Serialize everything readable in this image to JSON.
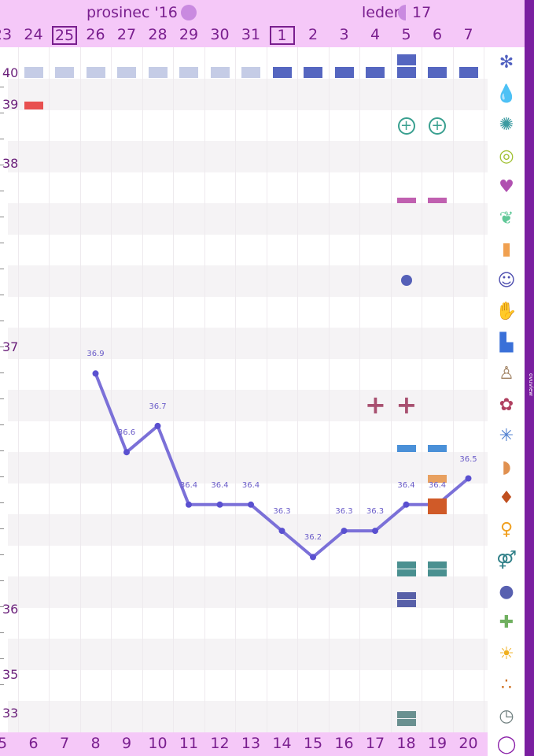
{
  "header": {
    "months": [
      {
        "label": "prosinec '16",
        "moon": "full-moon-icon"
      },
      {
        "label": "leden '17",
        "moon": "half-moon-icon"
      }
    ],
    "days": [
      "23",
      "24",
      "25",
      "26",
      "27",
      "28",
      "29",
      "30",
      "31",
      "1",
      "2",
      "3",
      "4",
      "5",
      "6",
      "7"
    ],
    "boxed_days": [
      "25",
      "1"
    ]
  },
  "footer": {
    "cycle_days": [
      "5",
      "6",
      "7",
      "8",
      "9",
      "10",
      "11",
      "12",
      "13",
      "14",
      "15",
      "16",
      "17",
      "18",
      "19",
      "20"
    ]
  },
  "y_axis": {
    "ticks": [
      "40",
      "39",
      "38",
      "37",
      "36",
      "35",
      "33"
    ]
  },
  "brand": "ovuview",
  "row_icons": [
    "flower-icon",
    "blood-drop-icon",
    "splash-icon",
    "rings-icon",
    "heart-icon",
    "leaf-icon",
    "pill-bottle-icon",
    "smiley-icon",
    "pain-icon",
    "document-icon",
    "pregnancy-test-icon",
    "flower-check-icon",
    "sparkle-flower-icon",
    "breast-icon",
    "drop-burst-icon",
    "woman-glow-icon",
    "couple-icon",
    "balloon-icon",
    "medkit-icon",
    "sun-alert-icon",
    "dots-icon",
    "stopwatch-icon",
    "cycle-icon"
  ],
  "colors": {
    "accent": "#7a1fa0",
    "header": "#f5c8f8",
    "line": "#7b70d8"
  },
  "chart_data": {
    "type": "line",
    "categories": [
      "8",
      "9",
      "10",
      "11",
      "12",
      "13",
      "14",
      "15",
      "16",
      "17",
      "18",
      "19",
      "20"
    ],
    "values": [
      36.9,
      36.6,
      36.7,
      36.4,
      36.4,
      36.4,
      36.3,
      36.2,
      36.3,
      36.3,
      36.4,
      36.4,
      36.5
    ],
    "labels": [
      "36.9",
      "36.6",
      "36.7",
      "36.4",
      "36.4",
      "36.4",
      "36.3",
      "36.2",
      "36.3",
      "36.3",
      "36.4",
      "36.4",
      "36.5"
    ]
  }
}
